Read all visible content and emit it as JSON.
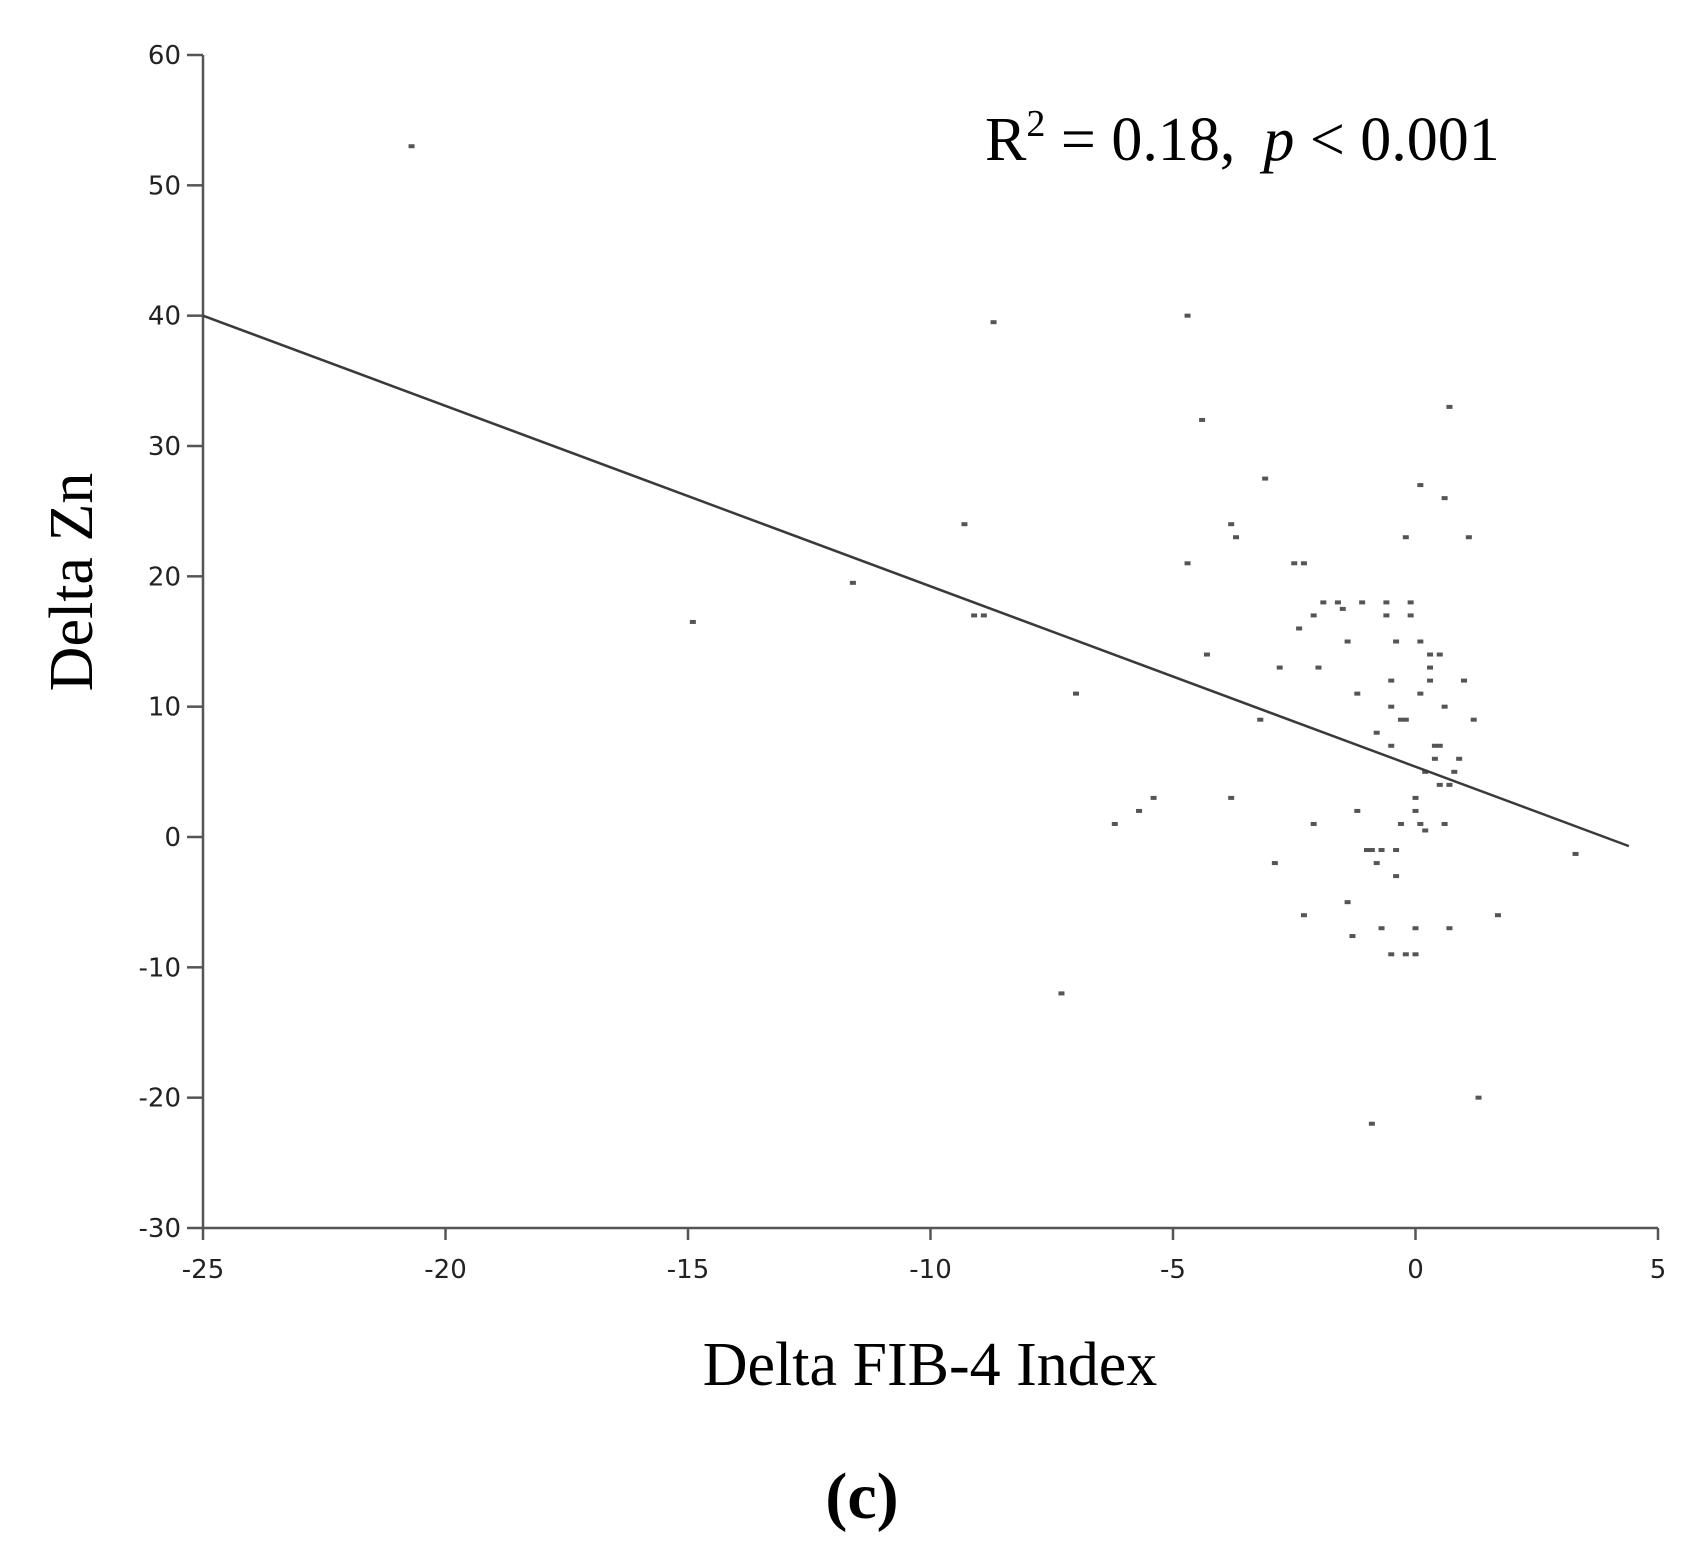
{
  "chart_data": {
    "type": "scatter",
    "xlabel": "Delta FIB-4 Index",
    "ylabel": "Delta Zn",
    "xlim": [
      -25,
      5
    ],
    "ylim": [
      -30,
      60
    ],
    "x_ticks": [
      "-25",
      "-20",
      "-15",
      "-10",
      "-5",
      "0",
      "5"
    ],
    "y_ticks": [
      "60",
      "50",
      "40",
      "30",
      "20",
      "10",
      "0",
      "-10",
      "-20",
      "-30"
    ],
    "grid": false,
    "annotation": {
      "r2_label": "R",
      "r2_sup": "2",
      "r2_value": " = 0.18,",
      "p_symbol": "p",
      "p_value": " < 0.001"
    },
    "panel_label": "(c)",
    "regression_line": {
      "x": [
        -25,
        4.4
      ],
      "y": [
        40,
        -0.7
      ]
    },
    "points": [
      [
        -20.7,
        53
      ],
      [
        -14.9,
        16.5
      ],
      [
        -11.6,
        19.5
      ],
      [
        -9.3,
        24
      ],
      [
        -9.1,
        17
      ],
      [
        -8.9,
        17
      ],
      [
        -8.7,
        39.5
      ],
      [
        -7.3,
        -12
      ],
      [
        -7.0,
        11
      ],
      [
        -6.2,
        1
      ],
      [
        -5.7,
        2
      ],
      [
        -5.4,
        3
      ],
      [
        -4.7,
        40
      ],
      [
        -4.7,
        21
      ],
      [
        -4.4,
        32
      ],
      [
        -4.3,
        14
      ],
      [
        -3.8,
        24
      ],
      [
        -3.7,
        23
      ],
      [
        -3.8,
        3
      ],
      [
        -3.2,
        9
      ],
      [
        -3.1,
        27.5
      ],
      [
        -2.9,
        -2
      ],
      [
        -2.8,
        13
      ],
      [
        -2.5,
        21
      ],
      [
        -2.4,
        16
      ],
      [
        -2.3,
        21
      ],
      [
        -2.3,
        -6
      ],
      [
        -2.1,
        1
      ],
      [
        -2.1,
        17
      ],
      [
        -2.0,
        13
      ],
      [
        -1.9,
        18
      ],
      [
        -1.6,
        18
      ],
      [
        -1.5,
        17.5
      ],
      [
        -1.4,
        -5
      ],
      [
        -1.4,
        15
      ],
      [
        -1.3,
        -7.6
      ],
      [
        -1.2,
        11
      ],
      [
        -1.2,
        2
      ],
      [
        -1.1,
        18
      ],
      [
        -1.0,
        -1
      ],
      [
        -0.9,
        -1
      ],
      [
        -0.9,
        -22
      ],
      [
        -0.8,
        -2
      ],
      [
        -0.8,
        8
      ],
      [
        -0.7,
        -1
      ],
      [
        -0.6,
        18
      ],
      [
        -0.6,
        17
      ],
      [
        -0.5,
        12
      ],
      [
        -0.5,
        10
      ],
      [
        -0.5,
        7
      ],
      [
        -0.4,
        15
      ],
      [
        -0.4,
        -1
      ],
      [
        -0.4,
        -3
      ],
      [
        -0.3,
        9
      ],
      [
        -0.3,
        1
      ],
      [
        -0.2,
        23
      ],
      [
        -0.2,
        9
      ],
      [
        -0.2,
        -9
      ],
      [
        -0.1,
        18
      ],
      [
        -0.1,
        17
      ],
      [
        0.0,
        3
      ],
      [
        0.0,
        2
      ],
      [
        0.0,
        -7
      ],
      [
        0.0,
        -9
      ],
      [
        0.1,
        27
      ],
      [
        0.1,
        15
      ],
      [
        0.1,
        11
      ],
      [
        0.1,
        1
      ],
      [
        0.2,
        0.5
      ],
      [
        0.2,
        5
      ],
      [
        0.3,
        14
      ],
      [
        0.3,
        13
      ],
      [
        0.3,
        12
      ],
      [
        0.4,
        7
      ],
      [
        0.4,
        6
      ],
      [
        0.5,
        7
      ],
      [
        0.5,
        14
      ],
      [
        0.5,
        4
      ],
      [
        0.6,
        26
      ],
      [
        0.6,
        10
      ],
      [
        0.6,
        1
      ],
      [
        0.7,
        33
      ],
      [
        0.7,
        4
      ],
      [
        0.8,
        5
      ],
      [
        0.9,
        6
      ],
      [
        1.0,
        12
      ],
      [
        1.1,
        23
      ],
      [
        1.2,
        9
      ],
      [
        1.3,
        -20
      ],
      [
        1.7,
        -6
      ],
      [
        3.3,
        -1.3
      ],
      [
        -0.7,
        -7
      ],
      [
        0.7,
        -7
      ],
      [
        -0.5,
        -9
      ]
    ]
  }
}
